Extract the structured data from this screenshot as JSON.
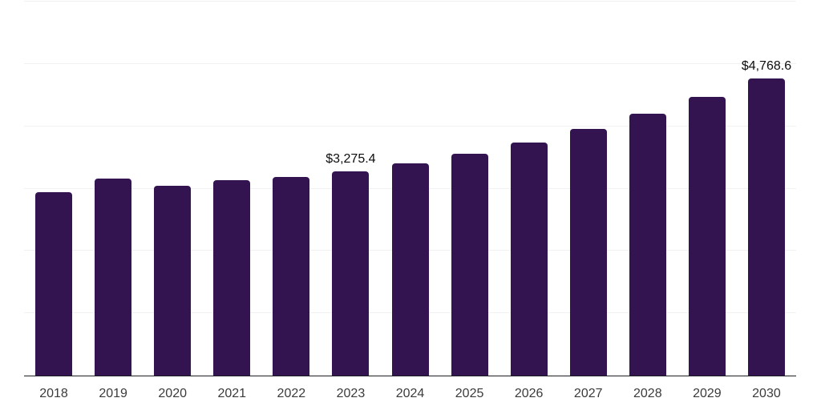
{
  "chart_data": {
    "type": "bar",
    "title": "",
    "xlabel": "",
    "ylabel": "",
    "categories": [
      "2018",
      "2019",
      "2020",
      "2021",
      "2022",
      "2023",
      "2024",
      "2025",
      "2026",
      "2027",
      "2028",
      "2029",
      "2030"
    ],
    "values": [
      2940,
      3160,
      3045,
      3135,
      3185,
      3275.4,
      3405,
      3560,
      3735,
      3955,
      4200,
      4470,
      4768.6
    ],
    "data_labels": {
      "2023": "$3,275.4",
      "2030": "$4,768.6"
    },
    "ylim": [
      0,
      6000
    ],
    "grid_step": 1000,
    "grid": true,
    "legend": false,
    "y_axis_labels_visible": false,
    "colors": {
      "bar": "#331450",
      "gridline": "#f1f0f3",
      "axis_line": "#1d1d24",
      "tick_label": "#3b3b3b",
      "value_label": "#0d0d0d",
      "background": "#ffffff"
    }
  }
}
